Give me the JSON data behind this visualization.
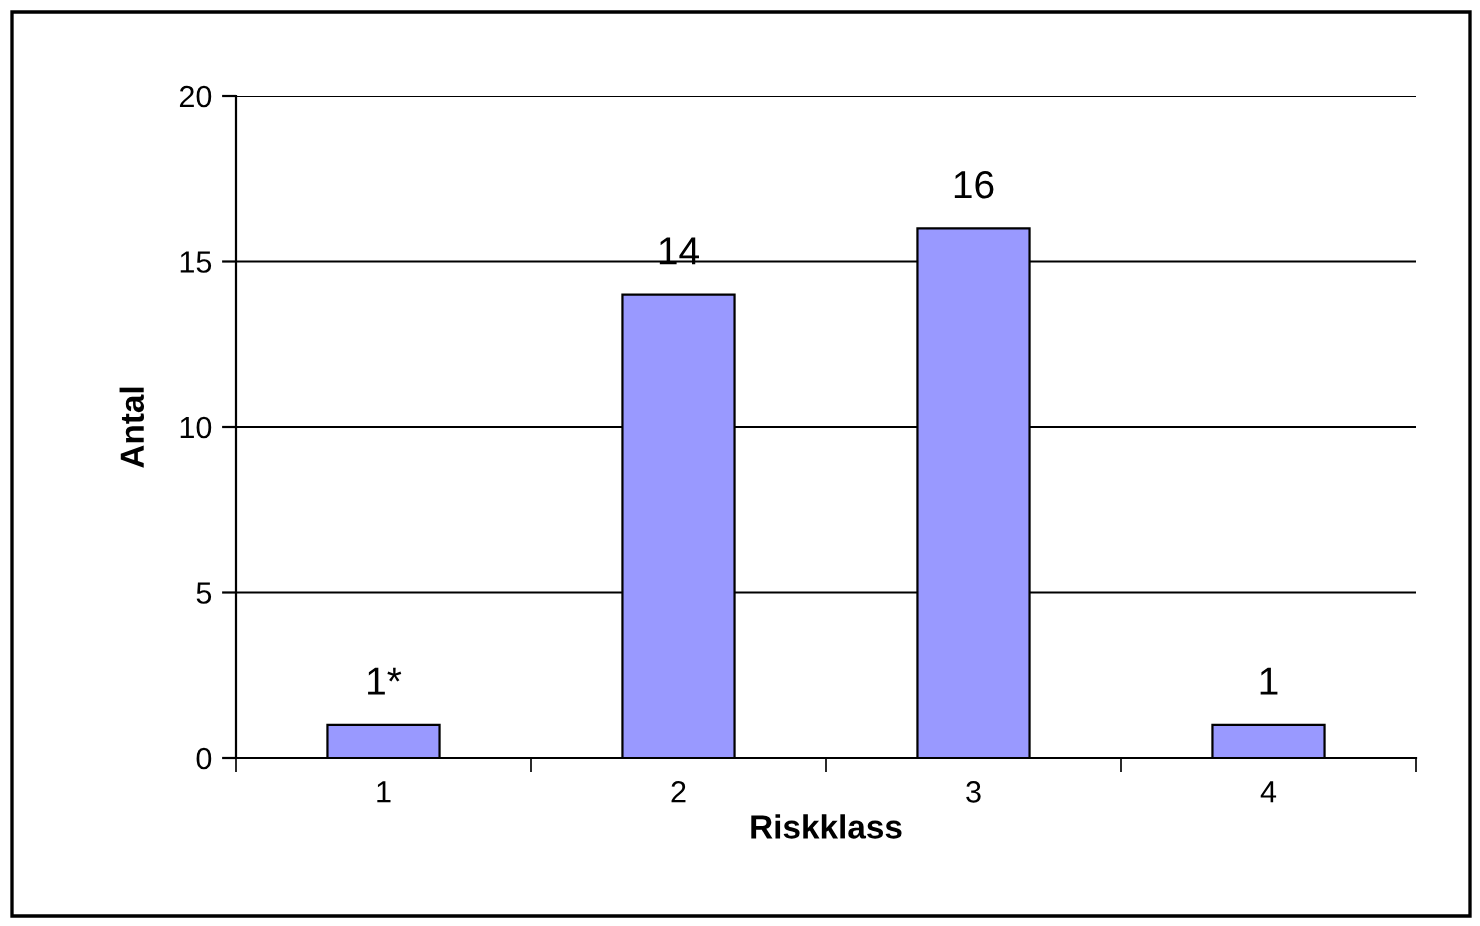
{
  "chart_data": {
    "type": "bar",
    "xlabel": "Riskklass",
    "ylabel": "Antal",
    "categories": [
      "1",
      "2",
      "3",
      "4"
    ],
    "values": [
      1,
      14,
      16,
      1
    ],
    "value_labels": [
      "1*",
      "14",
      "16",
      "1"
    ],
    "color": "#9999ff",
    "ylim": [
      0,
      20
    ],
    "yticks": [
      0,
      5,
      10,
      15,
      20
    ],
    "grid": "y",
    "legend": false
  }
}
